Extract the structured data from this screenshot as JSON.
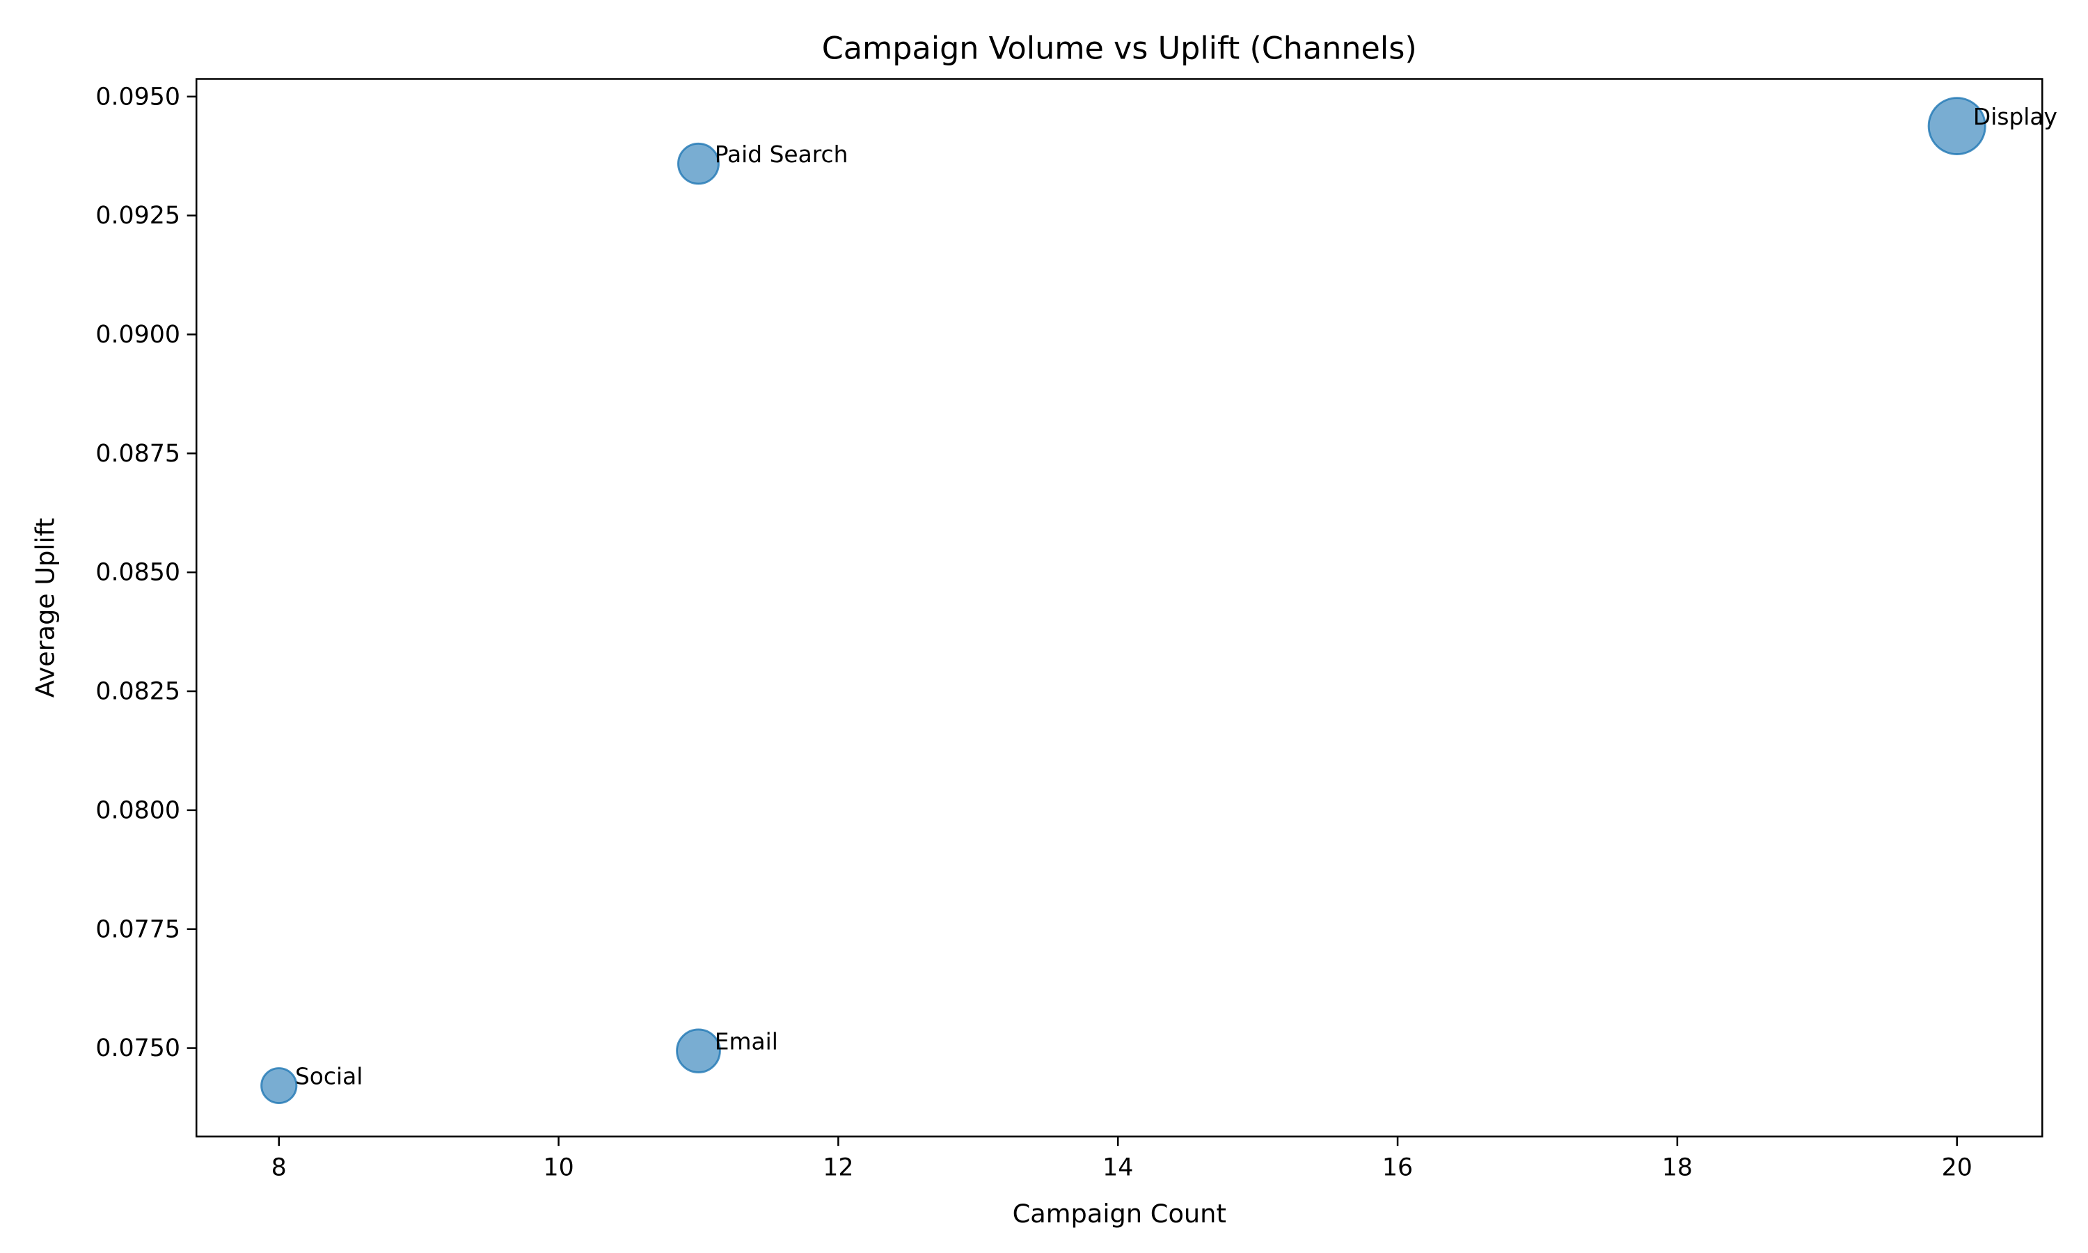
{
  "chart_data": {
    "type": "scatter",
    "title": "Campaign Volume vs Uplift (Channels)",
    "x_label": "Campaign Count",
    "y_label": "Average Uplift",
    "labels": [
      "Display",
      "Paid Search",
      "Email",
      "Social"
    ],
    "x": [
      20,
      11,
      11,
      8
    ],
    "values": [
      0.09438,
      0.09359,
      0.07494,
      0.07421
    ],
    "sizes": [
      441,
      225,
      256,
      169
    ],
    "color": "#1f77b4",
    "xlim": [
      7.41,
      20.61
    ],
    "xticks": [
      8,
      10,
      12,
      14,
      16,
      18,
      20
    ],
    "ylim": [
      0.07314,
      0.09537
    ],
    "yticks": [
      {
        "value": 0.075,
        "label": "0.0750"
      },
      {
        "value": 0.0775,
        "label": "0.0775"
      },
      {
        "value": 0.08,
        "label": "0.0800"
      },
      {
        "value": 0.0825,
        "label": "0.0825"
      },
      {
        "value": 0.085,
        "label": "0.0850"
      },
      {
        "value": 0.0875,
        "label": "0.0875"
      },
      {
        "value": 0.09,
        "label": "0.0900"
      },
      {
        "value": 0.0925,
        "label": "0.0925"
      },
      {
        "value": 0.095,
        "label": "0.0950"
      }
    ]
  }
}
